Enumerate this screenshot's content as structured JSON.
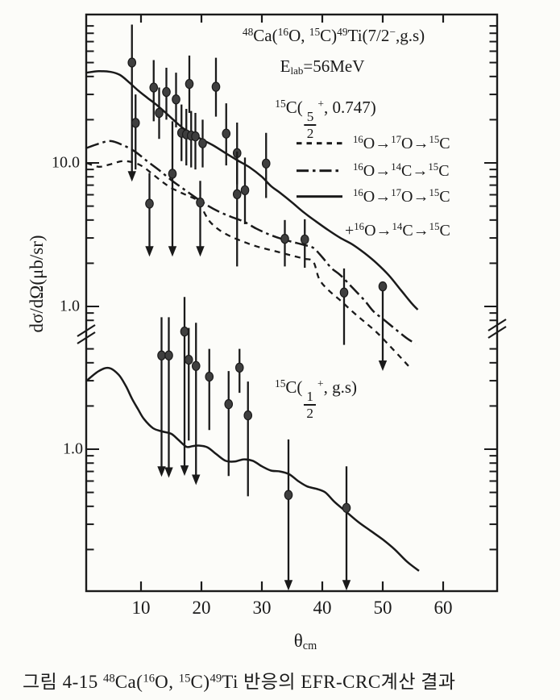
{
  "page": {
    "background": "#fcfcf9",
    "ink": "#1a1a1a",
    "marker_fill": "#3f3f3f"
  },
  "figure": {
    "caption": {
      "segments": [
        {
          "text": "그림 4-15  "
        },
        {
          "text": "48",
          "style": "sup"
        },
        {
          "text": "Ca("
        },
        {
          "text": "16",
          "style": "sup"
        },
        {
          "text": "O, "
        },
        {
          "text": "15",
          "style": "sup"
        },
        {
          "text": "C)"
        },
        {
          "text": "49",
          "style": "sup"
        },
        {
          "text": "Ti 반응의 EFR-CRC계산 결과"
        }
      ]
    }
  },
  "chart_data": {
    "type": "line",
    "title": {
      "segments": [
        {
          "text": "48",
          "style": "sup"
        },
        {
          "text": "Ca("
        },
        {
          "text": "16",
          "style": "sup"
        },
        {
          "text": "O, "
        },
        {
          "text": "15",
          "style": "sup"
        },
        {
          "text": "C)"
        },
        {
          "text": "49",
          "style": "sup"
        },
        {
          "text": "Ti(7/2"
        },
        {
          "text": "−",
          "style": "sup"
        },
        {
          "text": ",g.s)"
        }
      ]
    },
    "energy_label": {
      "segments": [
        {
          "text": "E"
        },
        {
          "text": "lab",
          "style": "sub"
        },
        {
          "text": "=56MeV"
        }
      ]
    },
    "state_label_upper": {
      "segments": [
        {
          "text": "15",
          "style": "sup"
        },
        {
          "text": "C("
        },
        {
          "frac": [
            "5",
            "2"
          ]
        },
        {
          "text": "+",
          "style": "sup"
        },
        {
          "text": ", 0.747)"
        }
      ]
    },
    "state_label_lower": {
      "segments": [
        {
          "text": "15",
          "style": "sup"
        },
        {
          "text": "C("
        },
        {
          "frac": [
            "1",
            "2"
          ]
        },
        {
          "text": "+",
          "style": "sup"
        },
        {
          "text": ", g.s)"
        }
      ]
    },
    "xlabel": {
      "segments": [
        {
          "text": "θ"
        },
        {
          "text": "cm",
          "style": "sub"
        }
      ]
    },
    "ylabel": "dσ/dΩ(μb/sr)",
    "x_axis": {
      "ticks": [
        10,
        20,
        30,
        40,
        50,
        60
      ],
      "range": [
        1,
        69
      ],
      "unit": "deg"
    },
    "y_axis_upper": {
      "scale": "log",
      "labeled_ticks": [
        {
          "value": 10,
          "label": "10.0"
        },
        {
          "value": 1,
          "label": "1.0"
        }
      ],
      "minor_ticks": [
        90,
        80,
        70,
        60,
        50,
        40,
        30,
        20,
        9,
        8,
        7,
        6,
        5,
        4,
        3,
        2,
        0.9,
        0.8
      ],
      "range": [
        0.75,
        110
      ]
    },
    "y_axis_lower": {
      "scale": "log",
      "labeled_ticks": [
        {
          "value": 1,
          "label": "1.0"
        }
      ],
      "minor_ticks": [
        5,
        4,
        3,
        2,
        0.9,
        0.8,
        0.7,
        0.6,
        0.5,
        0.4,
        0.3,
        0.2
      ],
      "range": [
        0.1,
        5.5
      ]
    },
    "axis_break": true,
    "legend": [
      {
        "line_style": "dashed",
        "segments": [
          {
            "text": "16",
            "style": "sup"
          },
          {
            "text": "O→"
          },
          {
            "text": "17",
            "style": "sup"
          },
          {
            "text": "O→"
          },
          {
            "text": "15",
            "style": "sup"
          },
          {
            "text": "C"
          }
        ]
      },
      {
        "line_style": "dashdot",
        "segments": [
          {
            "text": "16",
            "style": "sup"
          },
          {
            "text": "O→"
          },
          {
            "text": "14",
            "style": "sup"
          },
          {
            "text": "C→"
          },
          {
            "text": "15",
            "style": "sup"
          },
          {
            "text": "C"
          }
        ]
      },
      {
        "line_style": "solid",
        "segments": [
          {
            "text": "16",
            "style": "sup"
          },
          {
            "text": "O→"
          },
          {
            "text": "17",
            "style": "sup"
          },
          {
            "text": "O→"
          },
          {
            "text": "15",
            "style": "sup"
          },
          {
            "text": "C"
          }
        ]
      },
      {
        "line_style": "none",
        "segments": [
          {
            "text": "+"
          },
          {
            "text": "16",
            "style": "sup"
          },
          {
            "text": "O→"
          },
          {
            "text": "14",
            "style": "sup"
          },
          {
            "text": "C→"
          },
          {
            "text": "15",
            "style": "sup"
          },
          {
            "text": "C"
          }
        ]
      }
    ],
    "series": [
      {
        "name": "sum 16O→17O→15C + 16O→14C→15C (5/2+)",
        "panel": "upper",
        "style": "solid",
        "points": [
          [
            1,
            42.5
          ],
          [
            3,
            43.5
          ],
          [
            5,
            43
          ],
          [
            6.5,
            41
          ],
          [
            8,
            36.5
          ],
          [
            9.5,
            32
          ],
          [
            11,
            28.5
          ],
          [
            12.5,
            25.5
          ],
          [
            14,
            22.5
          ],
          [
            15.5,
            19.7
          ],
          [
            17,
            17.4
          ],
          [
            18.5,
            15.9
          ],
          [
            20,
            14.6
          ],
          [
            22,
            13.2
          ],
          [
            24,
            11.7
          ],
          [
            26,
            10.4
          ],
          [
            28,
            9.3
          ],
          [
            30,
            8.0
          ],
          [
            31.5,
            6.9
          ],
          [
            33,
            6.2
          ],
          [
            35,
            5.3
          ],
          [
            37,
            4.5
          ],
          [
            39,
            3.9
          ],
          [
            41,
            3.4
          ],
          [
            43,
            3.0
          ],
          [
            45,
            2.7
          ],
          [
            47,
            2.35
          ],
          [
            49,
            2.0
          ],
          [
            51,
            1.65
          ],
          [
            53,
            1.3
          ],
          [
            54.8,
            1.05
          ],
          [
            55.8,
            0.95
          ]
        ]
      },
      {
        "name": "16O→17O→15C (5/2+)",
        "panel": "upper",
        "style": "dashed",
        "points": [
          [
            1,
            10.0
          ],
          [
            3,
            9.4
          ],
          [
            5,
            9.8
          ],
          [
            7,
            10.3
          ],
          [
            9,
            10.0
          ],
          [
            10.5,
            9.3
          ],
          [
            12,
            8.3
          ],
          [
            13.5,
            7.4
          ],
          [
            15,
            6.7
          ],
          [
            17,
            6.1
          ],
          [
            19,
            5.6
          ],
          [
            19.8,
            5.2
          ],
          [
            20.6,
            4.4
          ],
          [
            21.5,
            3.85
          ],
          [
            23,
            3.4
          ],
          [
            25,
            3.05
          ],
          [
            27,
            2.82
          ],
          [
            29,
            2.63
          ],
          [
            31,
            2.5
          ],
          [
            33,
            2.38
          ],
          [
            35,
            2.26
          ],
          [
            37,
            2.15
          ],
          [
            38.5,
            2.05
          ],
          [
            39.5,
            1.55
          ],
          [
            41,
            1.3
          ],
          [
            43,
            1.1
          ],
          [
            45,
            0.92
          ],
          [
            47,
            0.78
          ],
          [
            49,
            0.66
          ],
          [
            51,
            0.54
          ],
          [
            53,
            0.44
          ],
          [
            54.5,
            0.375
          ]
        ]
      },
      {
        "name": "16O→14C→15C (5/2+)",
        "panel": "upper",
        "style": "dashdot",
        "points": [
          [
            1,
            12.7
          ],
          [
            3,
            13.6
          ],
          [
            5,
            14.2
          ],
          [
            7,
            13.3
          ],
          [
            9,
            12.0
          ],
          [
            11,
            10.3
          ],
          [
            13,
            8.9
          ],
          [
            15,
            7.6
          ],
          [
            17,
            6.6
          ],
          [
            19,
            5.75
          ],
          [
            21,
            5.05
          ],
          [
            23,
            4.55
          ],
          [
            25,
            4.2
          ],
          [
            27,
            3.9
          ],
          [
            29,
            3.5
          ],
          [
            31,
            3.2
          ],
          [
            33,
            2.98
          ],
          [
            35,
            2.82
          ],
          [
            37,
            2.68
          ],
          [
            38.5,
            2.56
          ],
          [
            40,
            2.2
          ],
          [
            41.5,
            1.85
          ],
          [
            43,
            1.65
          ],
          [
            45,
            1.35
          ],
          [
            47,
            1.1
          ],
          [
            48.5,
            0.92
          ],
          [
            50,
            0.82
          ],
          [
            52,
            0.7
          ],
          [
            54,
            0.6
          ],
          [
            55.4,
            0.55
          ]
        ]
      },
      {
        "name": "EFR-CRC (1/2+ g.s.)",
        "panel": "lower",
        "style": "solid",
        "points": [
          [
            1,
            3.0
          ],
          [
            3,
            3.5
          ],
          [
            4.7,
            3.68
          ],
          [
            6.3,
            3.3
          ],
          [
            7.5,
            2.75
          ],
          [
            8.5,
            2.25
          ],
          [
            9.5,
            1.9
          ],
          [
            10.5,
            1.62
          ],
          [
            12,
            1.4
          ],
          [
            13.5,
            1.33
          ],
          [
            15,
            1.28
          ],
          [
            16.2,
            1.16
          ],
          [
            17.5,
            1.04
          ],
          [
            18.5,
            1.05
          ],
          [
            19.5,
            1.06
          ],
          [
            21,
            1.03
          ],
          [
            22.5,
            0.92
          ],
          [
            24,
            0.83
          ],
          [
            25.5,
            0.82
          ],
          [
            27,
            0.85
          ],
          [
            28.5,
            0.83
          ],
          [
            30,
            0.76
          ],
          [
            31.5,
            0.71
          ],
          [
            33,
            0.7
          ],
          [
            34.5,
            0.67
          ],
          [
            36,
            0.6
          ],
          [
            37.5,
            0.55
          ],
          [
            39,
            0.53
          ],
          [
            40.5,
            0.5
          ],
          [
            42,
            0.43
          ],
          [
            44,
            0.365
          ],
          [
            46,
            0.31
          ],
          [
            48,
            0.27
          ],
          [
            50,
            0.235
          ],
          [
            52,
            0.2
          ],
          [
            54,
            0.165
          ],
          [
            56,
            0.142
          ]
        ]
      }
    ],
    "data_points": {
      "upper": [
        {
          "theta": 8.5,
          "value": 50,
          "upper": 92,
          "lower": 7.5,
          "arrow": true
        },
        {
          "theta": 9.1,
          "value": 19,
          "upper": 30,
          "lower": 9.0,
          "arrow": false
        },
        {
          "theta": 11.4,
          "value": 5.2,
          "upper": 8.5,
          "lower": 2.25,
          "arrow": true
        },
        {
          "theta": 12.1,
          "value": 33.5,
          "upper": 52,
          "lower": 19.5,
          "arrow": false
        },
        {
          "theta": 13.0,
          "value": 22.3,
          "upper": 33.5,
          "lower": 14.7,
          "arrow": false
        },
        {
          "theta": 14.2,
          "value": 31.2,
          "upper": 46,
          "lower": 20,
          "arrow": false
        },
        {
          "theta": 15.2,
          "value": 8.4,
          "upper": 19.5,
          "lower": 2.25,
          "arrow": true
        },
        {
          "theta": 15.8,
          "value": 27.7,
          "upper": 42.5,
          "lower": 17.7,
          "arrow": false
        },
        {
          "theta": 16.7,
          "value": 16.2,
          "upper": 25.5,
          "lower": 10.3,
          "arrow": false
        },
        {
          "theta": 17.5,
          "value": 15.8,
          "upper": 23.8,
          "lower": 9.6,
          "arrow": false
        },
        {
          "theta": 18.0,
          "value": 35.5,
          "upper": 56,
          "lower": 22.3,
          "arrow": false
        },
        {
          "theta": 18.3,
          "value": 15.5,
          "upper": 23,
          "lower": 9.3,
          "arrow": false
        },
        {
          "theta": 19.0,
          "value": 15.3,
          "upper": 22.3,
          "lower": 9.0,
          "arrow": false
        },
        {
          "theta": 19.8,
          "value": 5.3,
          "upper": 7.5,
          "lower": 2.25,
          "arrow": true
        },
        {
          "theta": 20.2,
          "value": 13.7,
          "upper": 20,
          "lower": 9.3,
          "arrow": false
        },
        {
          "theta": 22.4,
          "value": 33.9,
          "upper": 54,
          "lower": 21,
          "arrow": false
        },
        {
          "theta": 24.1,
          "value": 16.0,
          "upper": 26,
          "lower": 9.6,
          "arrow": false
        },
        {
          "theta": 25.9,
          "value": 11.7,
          "upper": 19.1,
          "lower": 7.1,
          "arrow": false
        },
        {
          "theta": 25.9,
          "value": 6.05,
          "upper": 12.0,
          "lower": 1.9,
          "arrow": false
        },
        {
          "theta": 27.2,
          "value": 6.45,
          "upper": 10.9,
          "lower": 3.74,
          "arrow": false
        },
        {
          "theta": 30.7,
          "value": 9.9,
          "upper": 16.2,
          "lower": 5.7,
          "arrow": false
        },
        {
          "theta": 33.8,
          "value": 2.96,
          "upper": 4.0,
          "lower": 1.9,
          "arrow": false
        },
        {
          "theta": 37.1,
          "value": 2.93,
          "upper": 4.05,
          "lower": 1.86,
          "arrow": false
        },
        {
          "theta": 43.6,
          "value": 1.25,
          "upper": 1.84,
          "lower": 0.54,
          "arrow": false
        },
        {
          "theta": 50.0,
          "value": 1.38,
          "upper": 1.38,
          "lower": 0.36,
          "arrow": true
        }
      ],
      "lower": [
        {
          "theta": 13.4,
          "value": 4.5,
          "upper": 8.3,
          "lower": 0.65,
          "arrow": true
        },
        {
          "theta": 14.6,
          "value": 4.5,
          "upper": 8.3,
          "lower": 0.64,
          "arrow": true
        },
        {
          "theta": 17.2,
          "value": 6.6,
          "upper": 11.5,
          "lower": 0.66,
          "arrow": true
        },
        {
          "theta": 17.9,
          "value": 4.2,
          "upper": 7.0,
          "lower": 1.15,
          "arrow": false
        },
        {
          "theta": 19.1,
          "value": 3.8,
          "upper": 7.6,
          "lower": 0.57,
          "arrow": true
        },
        {
          "theta": 21.3,
          "value": 3.2,
          "upper": 5.0,
          "lower": 1.36,
          "arrow": false
        },
        {
          "theta": 24.5,
          "value": 2.06,
          "upper": 3.5,
          "lower": 0.65,
          "arrow": false
        },
        {
          "theta": 26.3,
          "value": 3.7,
          "upper": 5.0,
          "lower": 2.47,
          "arrow": false
        },
        {
          "theta": 27.7,
          "value": 1.72,
          "upper": 2.96,
          "lower": 0.47,
          "arrow": false
        },
        {
          "theta": 34.4,
          "value": 0.48,
          "upper": 1.17,
          "lower": 0.105,
          "arrow": true
        },
        {
          "theta": 44.0,
          "value": 0.39,
          "upper": 0.76,
          "lower": 0.105,
          "arrow": true
        }
      ]
    }
  }
}
